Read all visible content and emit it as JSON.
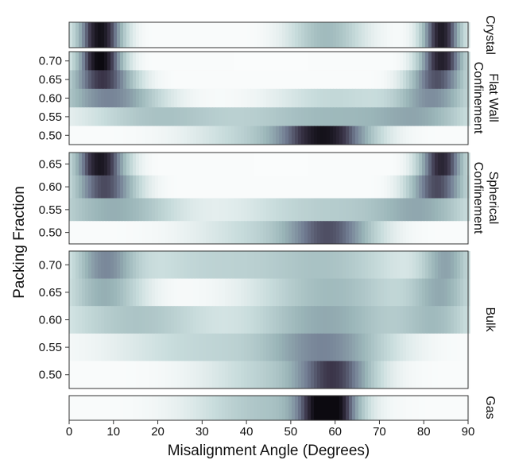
{
  "chart_data": {
    "type": "heatmap",
    "xlabel": "Misalignment Angle (Degrees)",
    "ylabel": "Packing Fraction",
    "xlim": [
      0,
      90
    ],
    "xticks": [
      "0",
      "10",
      "20",
      "30",
      "40",
      "50",
      "60",
      "70",
      "80",
      "90"
    ],
    "colormap": [
      "#ffffff",
      "#c8dcdc",
      "#9ab5b8",
      "#717c92",
      "#3a3448",
      "#0c0a10"
    ],
    "panels": [
      {
        "label": "Crystal",
        "rows": [
          {
            "tick": "",
            "peaks": [
              {
                "center": 7,
                "width": 3.5,
                "amp": 0.95
              },
              {
                "center": 84,
                "width": 3,
                "amp": 0.9
              },
              {
                "center": 58,
                "width": 6,
                "amp": 0.35
              }
            ]
          }
        ]
      },
      {
        "label": "Flat Wall Confinement",
        "rows": [
          {
            "tick": "0.70",
            "peaks": [
              {
                "center": 7,
                "width": 3.5,
                "amp": 1.0
              },
              {
                "center": 84,
                "width": 3.5,
                "amp": 0.88
              }
            ]
          },
          {
            "tick": "0.65",
            "peaks": [
              {
                "center": 7.5,
                "width": 5,
                "amp": 0.78
              },
              {
                "center": 83,
                "width": 4.5,
                "amp": 0.7
              }
            ]
          },
          {
            "tick": "0.60",
            "peaks": [
              {
                "center": 9,
                "width": 8,
                "amp": 0.55
              },
              {
                "center": 82,
                "width": 6,
                "amp": 0.5
              },
              {
                "center": 60,
                "width": 10,
                "amp": 0.2
              }
            ]
          },
          {
            "tick": "0.55",
            "peaks": [
              {
                "center": 58,
                "width": 15,
                "amp": 0.35
              },
              {
                "center": 20,
                "width": 12,
                "amp": 0.3
              },
              {
                "center": 80,
                "width": 8,
                "amp": 0.3
              }
            ]
          },
          {
            "tick": "0.50",
            "peaks": [
              {
                "center": 58,
                "width": 7,
                "amp": 0.8
              },
              {
                "center": 45,
                "width": 12,
                "amp": 0.25
              }
            ]
          }
        ]
      },
      {
        "label": "Spherical Confinement",
        "rows": [
          {
            "tick": "0.65",
            "peaks": [
              {
                "center": 7,
                "width": 4,
                "amp": 0.92
              },
              {
                "center": 84,
                "width": 3.5,
                "amp": 0.85
              }
            ]
          },
          {
            "tick": "0.60",
            "peaks": [
              {
                "center": 8,
                "width": 5,
                "amp": 0.72
              },
              {
                "center": 83,
                "width": 4.5,
                "amp": 0.72
              }
            ]
          },
          {
            "tick": "0.55",
            "peaks": [
              {
                "center": 10,
                "width": 10,
                "amp": 0.4
              },
              {
                "center": 80,
                "width": 8,
                "amp": 0.35
              },
              {
                "center": 58,
                "width": 14,
                "amp": 0.25
              }
            ]
          },
          {
            "tick": "0.50",
            "peaks": [
              {
                "center": 59,
                "width": 7,
                "amp": 0.6
              },
              {
                "center": 45,
                "width": 12,
                "amp": 0.2
              }
            ]
          }
        ]
      },
      {
        "label": "Bulk",
        "rows": [
          {
            "tick": "0.70",
            "peaks": [
              {
                "center": 8,
                "width": 5,
                "amp": 0.5
              },
              {
                "center": 85,
                "width": 4,
                "amp": 0.42
              },
              {
                "center": 58,
                "width": 12,
                "amp": 0.3
              },
              {
                "center": 30,
                "width": 12,
                "amp": 0.2
              }
            ]
          },
          {
            "tick": "0.65",
            "peaks": [
              {
                "center": 8,
                "width": 6,
                "amp": 0.4
              },
              {
                "center": 84,
                "width": 5,
                "amp": 0.38
              },
              {
                "center": 59,
                "width": 12,
                "amp": 0.35
              }
            ]
          },
          {
            "tick": "0.60",
            "peaks": [
              {
                "center": 58,
                "width": 12,
                "amp": 0.42
              },
              {
                "center": 15,
                "width": 12,
                "amp": 0.3
              },
              {
                "center": 83,
                "width": 6,
                "amp": 0.3
              }
            ]
          },
          {
            "tick": "0.55",
            "peaks": [
              {
                "center": 58,
                "width": 10,
                "amp": 0.52
              },
              {
                "center": 30,
                "width": 14,
                "amp": 0.2
              }
            ]
          },
          {
            "tick": "0.50",
            "peaks": [
              {
                "center": 60,
                "width": 6,
                "amp": 0.62
              },
              {
                "center": 48,
                "width": 12,
                "amp": 0.25
              }
            ]
          }
        ]
      },
      {
        "label": "Gas",
        "rows": [
          {
            "tick": "",
            "peaks": [
              {
                "center": 58.5,
                "width": 4.5,
                "amp": 1.0
              },
              {
                "center": 45,
                "width": 12,
                "amp": 0.3
              }
            ]
          }
        ]
      }
    ]
  }
}
